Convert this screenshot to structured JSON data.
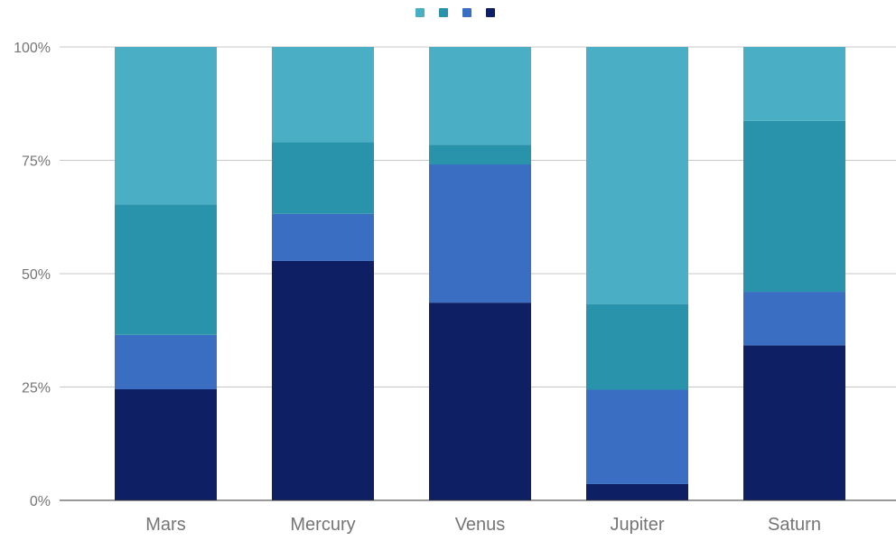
{
  "chart_data": {
    "type": "bar",
    "stacked": true,
    "normalized": true,
    "categories": [
      "Mars",
      "Mercury",
      "Venus",
      "Jupiter",
      "Saturn"
    ],
    "series": [
      {
        "values": [
          24.5,
          52.8,
          43.6,
          3.6,
          34.2
        ],
        "color": "#0e1f63"
      },
      {
        "values": [
          12.0,
          10.4,
          30.5,
          20.8,
          11.8
        ],
        "color": "#3a6ec2"
      },
      {
        "values": [
          28.8,
          15.8,
          4.3,
          18.9,
          37.7
        ],
        "color": "#2893ab"
      },
      {
        "values": [
          34.7,
          21.0,
          21.6,
          56.7,
          16.3
        ],
        "color": "#4aaec4"
      }
    ],
    "legend_order": [
      3,
      2,
      1,
      0
    ],
    "y_ticks": [
      "0%",
      "25%",
      "50%",
      "75%",
      "100%"
    ],
    "ylim": [
      0,
      100
    ],
    "legend_position": "top-center",
    "grid": true
  },
  "colors": {
    "gridline": "#c7c7c7",
    "baseline": "#333333",
    "tick_text": "#757575"
  }
}
